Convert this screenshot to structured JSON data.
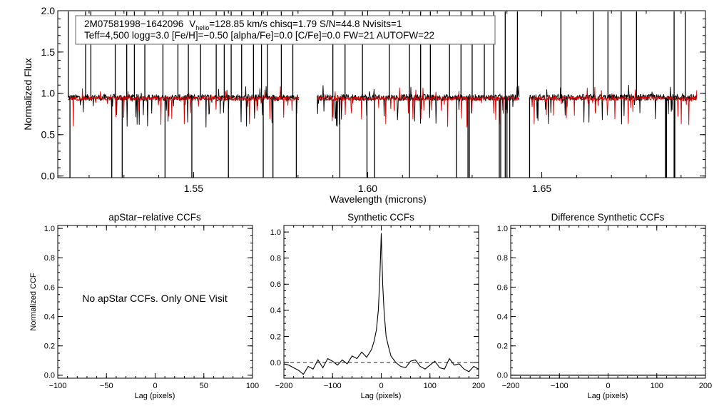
{
  "chart_data": [
    {
      "type": "line",
      "panel": "spectrum",
      "xlabel": "Wavelength (microns)",
      "ylabel": "Normalized Flux",
      "xlim": [
        1.511,
        1.697
      ],
      "ylim": [
        -0.02,
        2.0
      ],
      "x_ticks": [
        "1.55",
        "1.60",
        "1.65"
      ],
      "y_ticks": [
        "0.0",
        "0.5",
        "1.0",
        "1.5",
        "2.0"
      ],
      "info_line1": {
        "star_id": "2M07581998−1642096",
        "v_prefix": "V",
        "v_sub": "helio",
        "v_rest": "=128.85 km/s  chisq=1.79  S/N=44.8  Nvisits=1"
      },
      "info_line2": "Teff=4,500 logg=3.0 [Fe/H]=−0.50 [alpha/Fe]=0.0 [C/Fe]=0.0 FW=21 AUTOFW=22",
      "chips": [
        [
          1.514,
          1.5802
        ],
        [
          1.5855,
          1.6435
        ],
        [
          1.6465,
          1.6945
        ]
      ],
      "series": [
        {
          "color": "#000000",
          "continuum": 0.95
        },
        {
          "color": "#dd0000",
          "continuum": 0.94
        }
      ],
      "spikes": [
        1.514,
        1.519,
        1.5205,
        1.5275,
        1.5308,
        1.533,
        1.536,
        1.5412,
        1.5455,
        1.5485,
        1.552,
        1.5565,
        1.5588,
        1.5608,
        1.5638,
        1.5672,
        1.5695,
        1.5712,
        1.5752,
        1.5785,
        1.59,
        1.5935,
        1.5985,
        1.6062,
        1.612,
        1.6152,
        1.618,
        1.6235,
        1.6268,
        1.63,
        1.6335,
        1.6362,
        1.6395,
        1.643,
        1.6555,
        1.6648,
        1.669,
        1.6728,
        1.6772,
        1.688,
        1.6912
      ],
      "dips": [
        1.5145,
        1.5265,
        1.5295,
        1.5418,
        1.5495,
        1.56,
        1.57,
        1.5728,
        1.5795,
        1.592,
        1.5998,
        1.602,
        1.612,
        1.6255,
        1.6288,
        1.6292,
        1.6378,
        1.6382,
        1.6395,
        1.64,
        1.6408,
        1.6465,
        1.6855,
        1.6858,
        1.688,
        1.6882
      ]
    },
    {
      "type": "line",
      "panel": "apstar-ccf",
      "title": "apStar−relative CCFs",
      "xlabel": "Lag (pixels)",
      "ylabel": "Normalized CCF",
      "xlim": [
        -100,
        100
      ],
      "ylim": [
        -0.02,
        1.02
      ],
      "x_ticks": [
        "−100",
        "−50",
        "0",
        "50",
        "100"
      ],
      "y_ticks": [
        "0.0",
        "0.2",
        "0.4",
        "0.6",
        "0.8",
        "1.0"
      ],
      "message": "No apStar CCFs.  Only ONE Visit"
    },
    {
      "type": "line",
      "panel": "synthetic-ccf",
      "title": "Synthetic CCFs",
      "xlabel": "Lag (pixels)",
      "xlim": [
        -200,
        200
      ],
      "ylim": [
        -0.12,
        1.05
      ],
      "x_ticks": [
        "−200",
        "−100",
        "0",
        "100",
        "200"
      ],
      "y_ticks": [
        "0.0",
        "0.2",
        "0.4",
        "0.6",
        "0.8",
        "1.0"
      ],
      "baseline": 0.0,
      "series": [
        {
          "color": "#000000",
          "x": [
            -200,
            -190,
            -180,
            -170,
            -160,
            -150,
            -140,
            -130,
            -120,
            -110,
            -100,
            -90,
            -80,
            -70,
            -60,
            -50,
            -40,
            -30,
            -20,
            -15,
            -10,
            -6,
            -3,
            0,
            3,
            6,
            10,
            15,
            20,
            30,
            40,
            50,
            60,
            70,
            80,
            90,
            100,
            110,
            120,
            130,
            140,
            150,
            160,
            170,
            180,
            190,
            200
          ],
          "y": [
            -0.01,
            -0.02,
            -0.04,
            -0.06,
            -0.09,
            -0.03,
            -0.05,
            0.02,
            -0.04,
            0.03,
            0.01,
            -0.02,
            0.02,
            -0.01,
            0.05,
            0.03,
            0.08,
            0.04,
            0.1,
            0.16,
            0.25,
            0.4,
            0.65,
            0.99,
            0.6,
            0.38,
            0.2,
            0.12,
            0.05,
            0.0,
            -0.03,
            -0.04,
            0.01,
            0.02,
            -0.03,
            -0.05,
            -0.02,
            0.01,
            -0.04,
            -0.05,
            0.03,
            -0.02,
            -0.01,
            -0.05,
            -0.07,
            -0.03,
            -0.05
          ]
        }
      ]
    },
    {
      "type": "line",
      "panel": "difference-ccf",
      "title": "Difference Synthetic CCFs",
      "xlabel": "Lag (pixels)",
      "xlim": [
        -200,
        200
      ],
      "ylim": [
        -0.02,
        1.02
      ],
      "x_ticks": [
        "−200",
        "−100",
        "0",
        "100",
        "200"
      ],
      "y_ticks": [
        "0.0",
        "0.2",
        "0.4",
        "0.6",
        "0.8",
        "1.0"
      ],
      "series": [
        {
          "color": "#000000",
          "x": [
            -200,
            200
          ],
          "y": [
            0.0,
            0.0
          ]
        }
      ]
    }
  ]
}
